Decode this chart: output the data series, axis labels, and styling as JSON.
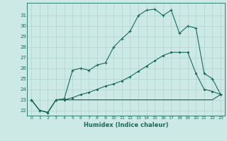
{
  "xlabel": "Humidex (Indice chaleur)",
  "background_color": "#cce9e5",
  "grid_color": "#b0d4cf",
  "line_color": "#1a6b5a",
  "xlim": [
    -0.5,
    23.5
  ],
  "ylim": [
    21.5,
    32.2
  ],
  "xticks": [
    0,
    1,
    2,
    3,
    4,
    5,
    6,
    7,
    8,
    9,
    10,
    11,
    12,
    13,
    14,
    15,
    16,
    17,
    18,
    19,
    20,
    21,
    22,
    23
  ],
  "yticks": [
    22,
    23,
    24,
    25,
    26,
    27,
    28,
    29,
    30,
    31
  ],
  "series1_x": [
    0,
    1,
    2,
    3,
    4,
    5,
    6,
    7,
    8,
    9,
    10,
    11,
    12,
    13,
    14,
    15,
    16,
    17,
    18,
    19,
    20,
    21,
    22,
    23
  ],
  "series1_y": [
    23.0,
    22.0,
    21.8,
    23.0,
    23.1,
    25.8,
    26.0,
    25.8,
    26.3,
    26.5,
    28.0,
    28.8,
    29.5,
    31.0,
    31.5,
    31.6,
    31.0,
    31.5,
    29.3,
    30.0,
    29.8,
    25.5,
    25.0,
    23.5
  ],
  "series2_x": [
    0,
    1,
    2,
    3,
    4,
    5,
    6,
    7,
    8,
    9,
    10,
    11,
    12,
    13,
    14,
    15,
    16,
    17,
    18,
    19,
    20,
    21,
    22,
    23
  ],
  "series2_y": [
    23.0,
    22.0,
    21.8,
    23.0,
    23.0,
    23.2,
    23.5,
    23.7,
    24.0,
    24.3,
    24.5,
    24.8,
    25.2,
    25.7,
    26.2,
    26.7,
    27.2,
    27.5,
    27.5,
    27.5,
    25.5,
    24.0,
    23.8,
    23.5
  ],
  "series3_x": [
    0,
    1,
    2,
    3,
    4,
    5,
    6,
    7,
    8,
    9,
    10,
    11,
    12,
    13,
    14,
    15,
    16,
    17,
    18,
    19,
    20,
    21,
    22,
    23
  ],
  "series3_y": [
    23.0,
    22.0,
    21.8,
    23.0,
    23.0,
    23.0,
    23.0,
    23.0,
    23.0,
    23.0,
    23.0,
    23.0,
    23.0,
    23.0,
    23.0,
    23.0,
    23.0,
    23.0,
    23.0,
    23.0,
    23.0,
    23.0,
    23.0,
    23.5
  ]
}
